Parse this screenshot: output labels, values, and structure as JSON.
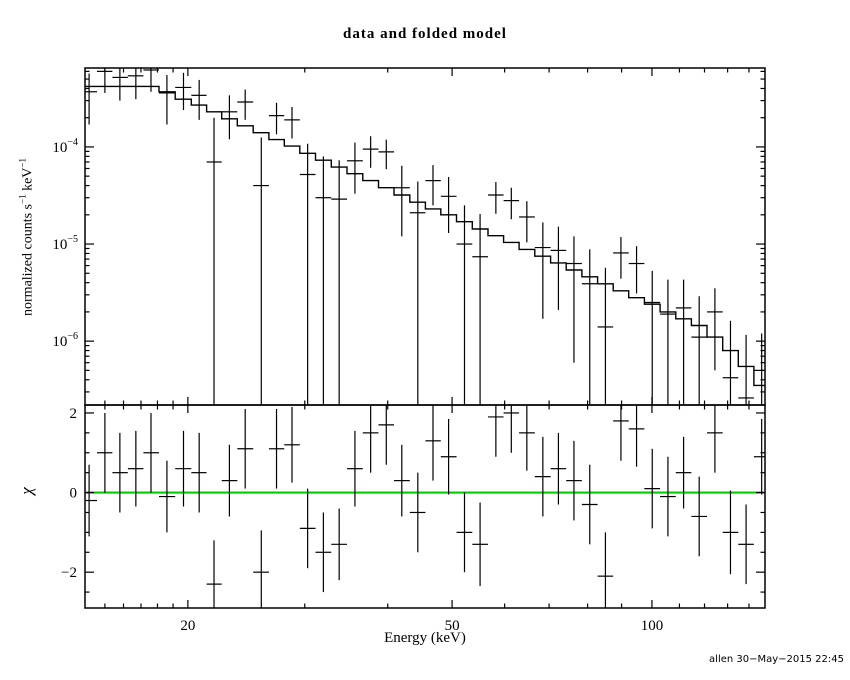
{
  "footer": {
    "credit": "allen 30−May−2015 22:45"
  },
  "chart_data": {
    "type": "line",
    "title": "data and folded model",
    "xlabel": "Energy (keV)",
    "ylabel_top_parts": [
      {
        "text": "normalized counts s",
        "sup": false
      },
      {
        "text": "−1",
        "sup": true
      },
      {
        "text": " keV",
        "sup": false
      },
      {
        "text": "−1",
        "sup": true
      }
    ],
    "ylabel_bottom": "χ",
    "x_scale": "log",
    "y_scale_top": "log",
    "y_scale_bottom": "linear",
    "grid": false,
    "legend": "none",
    "xlim": [
      14,
      148
    ],
    "ylim_top": [
      2.2e-07,
      0.00065
    ],
    "ylim_bottom": [
      -2.9,
      2.2
    ],
    "x_ticks": [
      {
        "value": 20,
        "label": "20"
      },
      {
        "value": 50,
        "label": "50"
      },
      {
        "value": 100,
        "label": "100"
      }
    ],
    "x_minor_ticks": [
      15,
      16,
      17,
      18,
      19,
      30,
      40,
      60,
      70,
      80,
      90,
      110,
      120,
      130,
      140
    ],
    "y_ticks_top": [
      {
        "value": 0.0001,
        "base": "10",
        "exp": "−4"
      },
      {
        "value": 1e-05,
        "base": "10",
        "exp": "−5"
      },
      {
        "value": 1e-06,
        "base": "10",
        "exp": "−6"
      }
    ],
    "y_ticks_bottom": [
      {
        "value": 2,
        "label": "2"
      },
      {
        "value": 0,
        "label": "0"
      },
      {
        "value": -2,
        "label": "−2"
      }
    ],
    "y_minor_bottom": [
      -2.5,
      -1.5,
      -1,
      -0.5,
      0.5,
      1,
      1.5
    ],
    "zero_line_color": "#00cc00",
    "energy": [
      14.2,
      15.0,
      15.8,
      16.7,
      17.6,
      18.6,
      19.7,
      20.8,
      21.9,
      23.1,
      24.4,
      25.8,
      27.2,
      28.7,
      30.3,
      32.0,
      33.8,
      35.7,
      37.7,
      39.8,
      42.0,
      44.4,
      46.8,
      49.4,
      52.2,
      55.1,
      58.2,
      61.4,
      64.8,
      68.5,
      72.3,
      76.3,
      80.6,
      85.1,
      89.8,
      94.8,
      100.1,
      105.7,
      111.6,
      117.8,
      124.4,
      131.3,
      138.6,
      146.3
    ],
    "model": [
      0.00042,
      0.00042,
      0.00042,
      0.00042,
      0.00042,
      0.00037,
      0.00031,
      0.00027,
      0.00023,
      0.000195,
      0.000165,
      0.00014,
      0.000119,
      0.000102,
      8.6e-05,
      7.3e-05,
      6.2e-05,
      5.3e-05,
      4.5e-05,
      3.8e-05,
      3.2e-05,
      2.7e-05,
      2.3e-05,
      2e-05,
      1.7e-05,
      1.43e-05,
      1.22e-05,
      1.04e-05,
      8.8e-06,
      7.5e-06,
      6.4e-06,
      5.4e-06,
      4.6e-06,
      3.9e-06,
      3.3e-06,
      2.8e-06,
      2.4e-06,
      2e-06,
      1.7e-06,
      1.45e-06,
      1.1e-06,
      8e-07,
      5.5e-07,
      3.5e-07
    ],
    "counts": [
      0.00037,
      0.0006,
      0.00052,
      0.00054,
      0.00062,
      0.00036,
      0.00041,
      0.00034,
      7e-05,
      0.00023,
      0.00029,
      4e-05,
      0.00021,
      0.00019,
      5.2e-05,
      3e-05,
      2.9e-05,
      7.2e-05,
      9.5e-05,
      8.9e-05,
      3.8e-05,
      2.1e-05,
      4.5e-05,
      3.1e-05,
      1e-05,
      7.4e-06,
      3.2e-05,
      2.8e-05,
      1.9e-05,
      9.2e-06,
      8.6e-06,
      6.3e-06,
      3.9e-06,
      1.4e-06,
      8.1e-06,
      6.3e-06,
      2.5e-06,
      1.9e-06,
      2.2e-06,
      1.1e-06,
      2e-06,
      4.2e-07,
      2.6e-07,
      5e-07
    ],
    "counts_err": [
      0.0002,
      0.00024,
      0.00022,
      0.00023,
      0.00025,
      0.00019,
      0.00017,
      0.00015,
      0.00013,
      0.00011,
      0.0001,
      8.5e-05,
      7.5e-05,
      6.8e-05,
      5.6e-05,
      5e-05,
      4.4e-05,
      3.9e-05,
      3.4e-05,
      3e-05,
      2.6e-05,
      2.3e-05,
      2e-05,
      1.8e-05,
      1.5e-05,
      1.3e-05,
      1.15e-05,
      1e-05,
      8.6e-06,
      7.5e-06,
      6.5e-06,
      5.7e-06,
      4.9e-06,
      4.3e-06,
      3.7e-06,
      3.2e-06,
      2.8e-06,
      2.4e-06,
      2.1e-06,
      1.8e-06,
      1.5e-06,
      1.2e-06,
      9e-07,
      7e-07
    ],
    "chi": [
      -0.2,
      1.0,
      0.5,
      0.6,
      1.0,
      -0.1,
      0.6,
      0.5,
      -2.3,
      0.3,
      1.1,
      -2.0,
      1.1,
      1.2,
      -0.9,
      -1.5,
      -1.3,
      0.6,
      1.5,
      1.7,
      0.3,
      -0.5,
      1.3,
      0.9,
      -1.0,
      -1.3,
      1.9,
      2.0,
      1.5,
      0.4,
      0.6,
      0.3,
      -0.3,
      -2.1,
      1.8,
      1.6,
      0.1,
      -0.1,
      0.5,
      -0.6,
      1.5,
      -1.0,
      -1.3,
      0.9
    ],
    "chi_err": [
      0.9,
      1.0,
      1.0,
      0.95,
      1.0,
      0.9,
      0.95,
      1.0,
      1.1,
      0.9,
      1.0,
      1.05,
      1.0,
      0.95,
      1.0,
      1.0,
      0.9,
      0.95,
      1.0,
      1.0,
      0.9,
      1.0,
      1.0,
      0.95,
      1.0,
      1.05,
      1.0,
      1.0,
      0.95,
      1.0,
      0.9,
      1.0,
      1.0,
      1.1,
      1.0,
      0.95,
      1.0,
      1.0,
      0.9,
      1.0,
      1.0,
      1.05,
      1.0,
      0.95
    ]
  }
}
